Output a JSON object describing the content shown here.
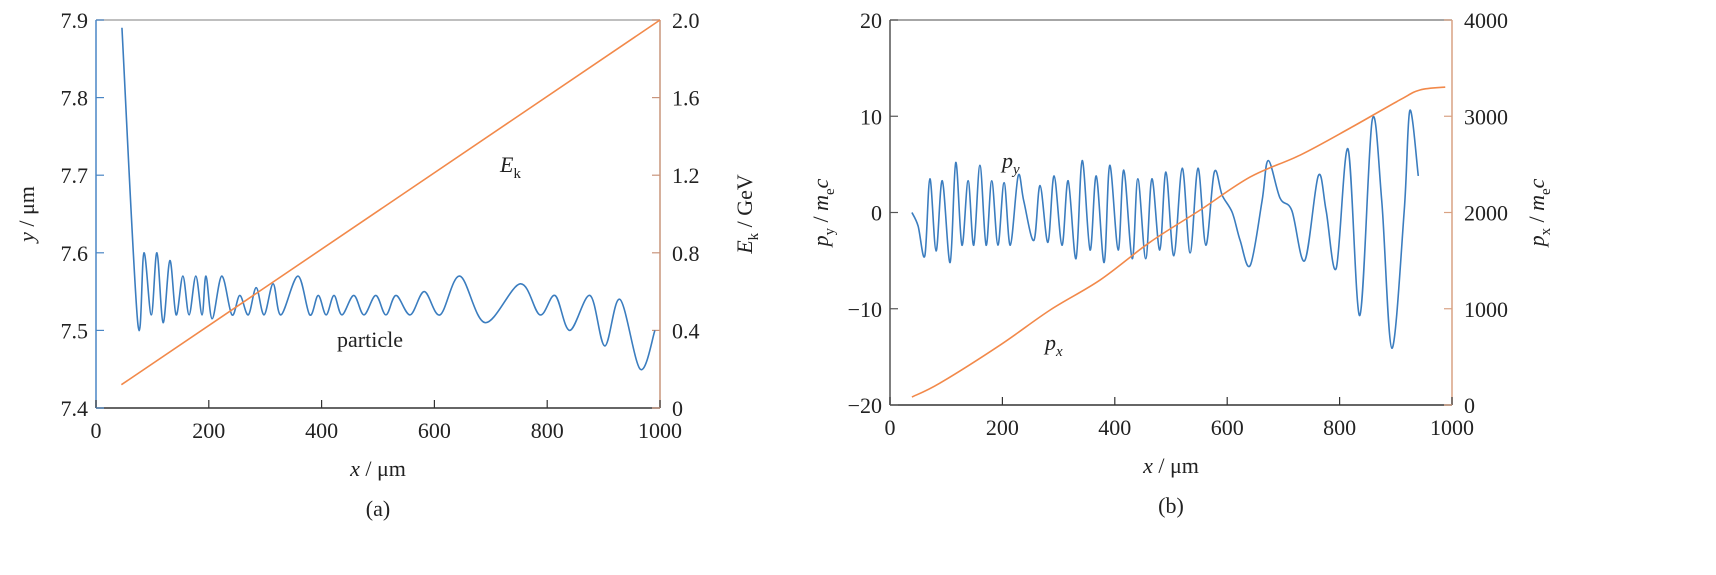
{
  "chart_data": [
    {
      "type": "line",
      "xlabel": [
        {
          "text": "x",
          "italic": true
        },
        {
          "text": " / μm"
        }
      ],
      "ylabel": [
        {
          "text": "y",
          "italic": true
        },
        {
          "text": " / μm"
        }
      ],
      "y2label": [
        {
          "text": "E",
          "italic": true
        },
        {
          "text": "k",
          "sub": true
        },
        {
          "text": " / GeV"
        }
      ],
      "caption": "(a)",
      "xlim": [
        0,
        1000
      ],
      "xticks": [
        0,
        200,
        400,
        600,
        800,
        1000
      ],
      "ylim": [
        7.4,
        7.9
      ],
      "yticks": [
        7.4,
        7.5,
        7.6,
        7.7,
        7.8,
        7.9
      ],
      "y2lim": [
        0,
        2
      ],
      "y2ticks": [
        0,
        0.4,
        0.8,
        1.2,
        1.6,
        {
          "value": 2,
          "label": "2.0"
        }
      ],
      "annotations": [
        [
          {
            "text": "E",
            "italic": true
          },
          {
            "text": "k",
            "sub": true
          }
        ],
        [
          {
            "text": "particle"
          }
        ]
      ],
      "series": [
        {
          "color": "#3b7dbf",
          "x": [
            46,
            74,
            85,
            98,
            108,
            119,
            131,
            142,
            154,
            165,
            177,
            188,
            195,
            206,
            223,
            241,
            255,
            270,
            284,
            298,
            314,
            328,
            358,
            379,
            394,
            408,
            422,
            436,
            457,
            475,
            496,
            514,
            532,
            557,
            582,
            610,
            645,
            690,
            752,
            787,
            814,
            840,
            876,
            902,
            929,
            965,
            991
          ],
          "values": [
            7.89,
            7.51,
            7.6,
            7.52,
            7.6,
            7.51,
            7.59,
            7.52,
            7.57,
            7.52,
            7.57,
            7.52,
            7.57,
            7.515,
            7.57,
            7.52,
            7.545,
            7.52,
            7.555,
            7.52,
            7.56,
            7.52,
            7.57,
            7.52,
            7.545,
            7.52,
            7.545,
            7.52,
            7.545,
            7.52,
            7.545,
            7.52,
            7.545,
            7.52,
            7.55,
            7.52,
            7.57,
            7.51,
            7.56,
            7.52,
            7.545,
            7.5,
            7.545,
            7.48,
            7.54,
            7.45,
            7.5
          ]
        },
        {
          "color": "#f2894a",
          "axis": "y2",
          "x": [
            45,
            1000
          ],
          "values": [
            0.12,
            2
          ]
        }
      ]
    },
    {
      "type": "line",
      "xlabel": [
        {
          "text": "x",
          "italic": true
        },
        {
          "text": " / μm"
        }
      ],
      "ylabel": [
        {
          "text": "p",
          "italic": true
        },
        {
          "text": "y",
          "sub": true
        },
        {
          "text": " / "
        },
        {
          "text": "m",
          "italic": true
        },
        {
          "text": "e",
          "sub": true
        },
        {
          "text": "c",
          "italic": true
        }
      ],
      "y2label": [
        {
          "text": "p",
          "italic": true
        },
        {
          "text": "x",
          "sub": true
        },
        {
          "text": " / "
        },
        {
          "text": "m",
          "italic": true
        },
        {
          "text": "e",
          "sub": true
        },
        {
          "text": "c",
          "italic": true
        }
      ],
      "caption": "(b)",
      "xlim": [
        0,
        1000
      ],
      "xticks": [
        0,
        200,
        400,
        600,
        800,
        1000
      ],
      "ylim": [
        -20,
        20
      ],
      "yticks": [
        {
          "value": -20,
          "label": "−20"
        },
        {
          "value": -10,
          "label": "−10"
        },
        0,
        10,
        20
      ],
      "y2lim": [
        0,
        4000
      ],
      "y2ticks": [
        0,
        1000,
        2000,
        3000,
        4000
      ],
      "annotations": [
        [
          {
            "text": "p",
            "italic": true
          },
          {
            "text": "y",
            "sub": true,
            "italic": true
          }
        ],
        [
          {
            "text": "p",
            "italic": true
          },
          {
            "text": "x",
            "sub": true,
            "italic": true
          }
        ]
      ],
      "series": [
        {
          "color": "#3b7dbf",
          "x": [
            39,
            50,
            62,
            71,
            82,
            93,
            107,
            117,
            128,
            139,
            149,
            160,
            171,
            181,
            192,
            203,
            214,
            228,
            238,
            256,
            267,
            281,
            292,
            306,
            317,
            331,
            342,
            356,
            367,
            381,
            391,
            406,
            416,
            431,
            441,
            455,
            466,
            480,
            491,
            505,
            520,
            534,
            548,
            562,
            577,
            591,
            609,
            623,
            641,
            662,
            673,
            694,
            715,
            738,
            762,
            776,
            794,
            815,
            836,
            858,
            875,
            893,
            915,
            925,
            940
          ],
          "values": [
            0,
            -1.4,
            -4.5,
            3.5,
            -4,
            3.3,
            -5.2,
            5.2,
            -3.4,
            3.3,
            -3.4,
            4.9,
            -3.4,
            3.3,
            -3.4,
            3.1,
            -3.4,
            3.8,
            1.2,
            -2.9,
            2.8,
            -3.1,
            3.8,
            -3.4,
            3.3,
            -4.8,
            5.4,
            -3.9,
            3.8,
            -5.2,
            4.9,
            -3.9,
            4.4,
            -4.8,
            3.5,
            -4.8,
            3.5,
            -3.9,
            4.2,
            -4.5,
            4.6,
            -4.2,
            4.6,
            -3.4,
            4.2,
            1.8,
            0,
            -2.9,
            -5.5,
            1.2,
            5.4,
            1.5,
            0.2,
            -5,
            3.8,
            0.2,
            -5.8,
            6.6,
            -10.7,
            9.6,
            1.2,
            -14.1,
            0.2,
            10.6,
            3.8
          ]
        },
        {
          "color": "#f2894a",
          "axis": "y2",
          "x": [
            39,
            89,
            196,
            285,
            374,
            463,
            552,
            641,
            730,
            819,
            907,
            943,
            988
          ],
          "values": [
            83,
            228,
            623,
            987,
            1299,
            1693,
            2026,
            2369,
            2597,
            2878,
            3169,
            3273,
            3303
          ]
        }
      ]
    }
  ]
}
